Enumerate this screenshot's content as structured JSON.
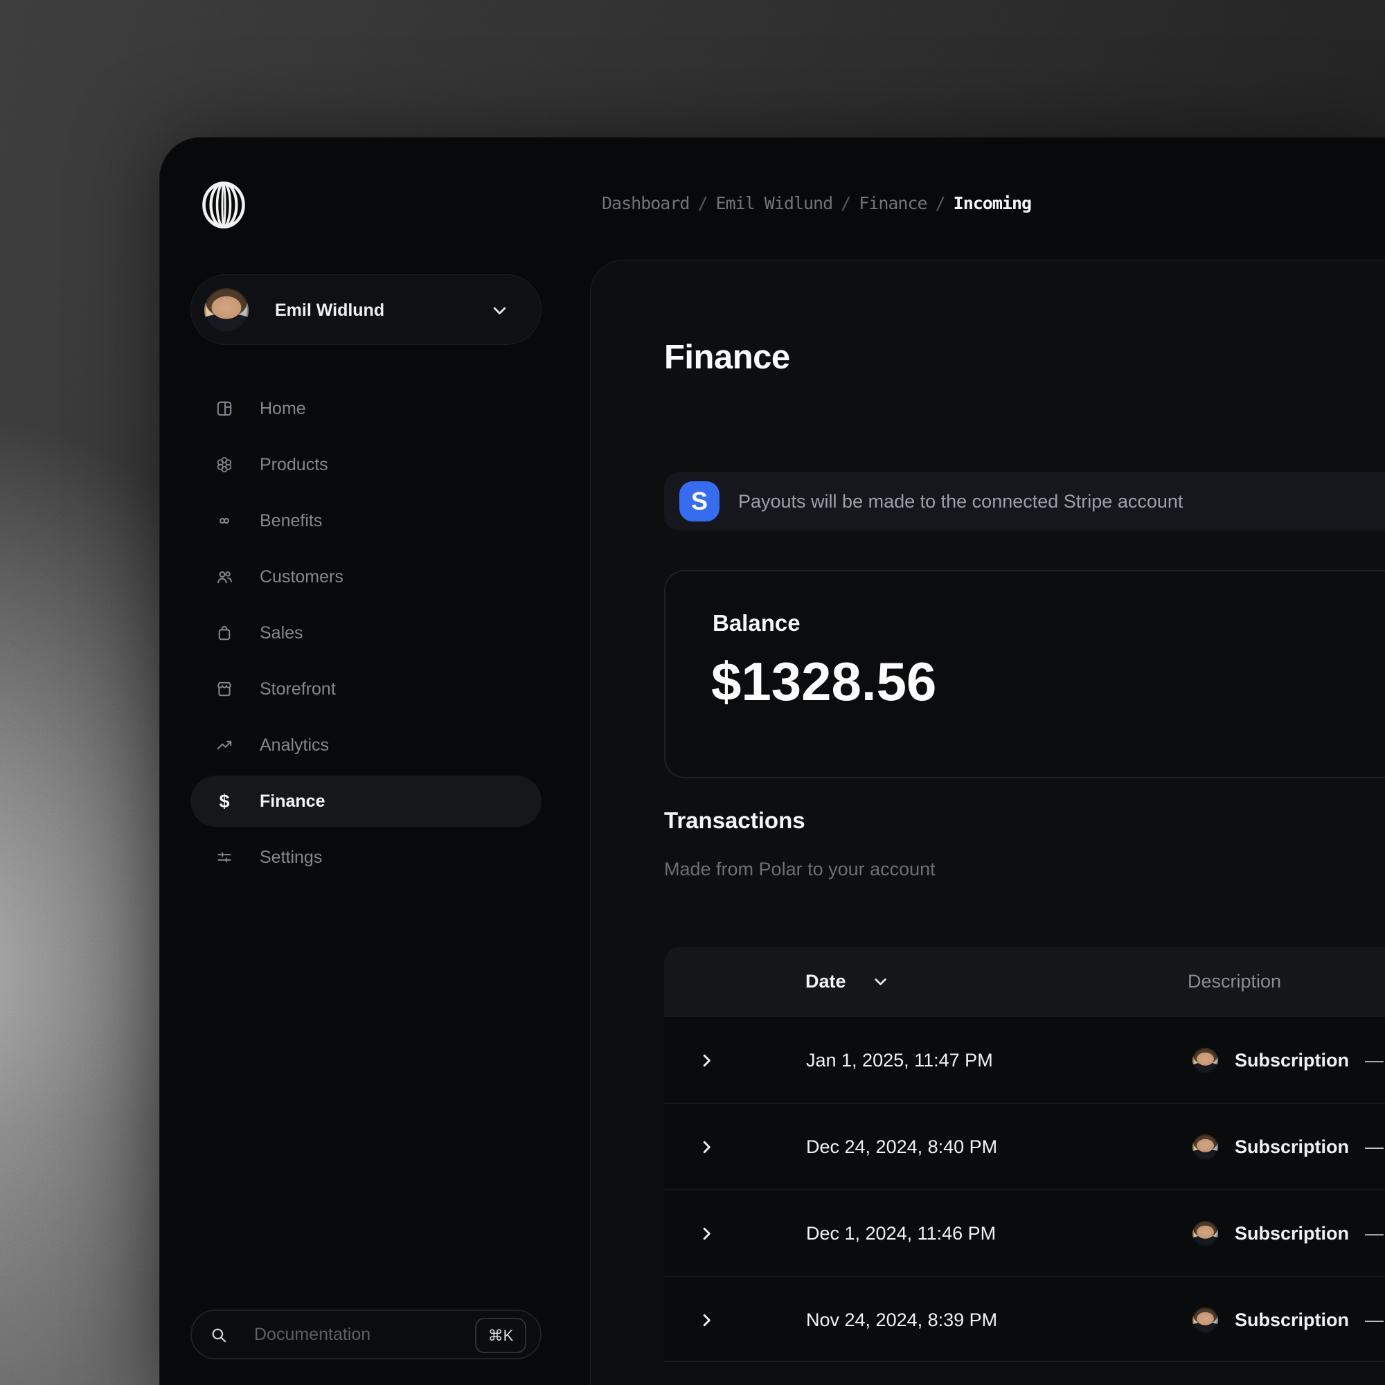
{
  "colors": {
    "stripe_blue": "#356cf0",
    "window_bg": "#08090a",
    "panel_bg": "#0d0e10"
  },
  "breadcrumb": {
    "items": [
      "Dashboard",
      "Emil Widlund",
      "Finance"
    ],
    "current": "Incoming",
    "separator": "/"
  },
  "sidebar": {
    "user": {
      "name": "Emil Widlund"
    },
    "nav": [
      {
        "id": "home",
        "icon": "home-icon",
        "label": "Home",
        "active": false
      },
      {
        "id": "products",
        "icon": "products-icon",
        "label": "Products",
        "active": false
      },
      {
        "id": "benefits",
        "icon": "benefits-icon",
        "label": "Benefits",
        "active": false
      },
      {
        "id": "customers",
        "icon": "customers-icon",
        "label": "Customers",
        "active": false
      },
      {
        "id": "sales",
        "icon": "sales-icon",
        "label": "Sales",
        "active": false
      },
      {
        "id": "storefront",
        "icon": "storefront-icon",
        "label": "Storefront",
        "active": false
      },
      {
        "id": "analytics",
        "icon": "analytics-icon",
        "label": "Analytics",
        "active": false
      },
      {
        "id": "finance",
        "icon": "dollar-icon",
        "label": "Finance",
        "active": true
      },
      {
        "id": "settings",
        "icon": "settings-icon",
        "label": "Settings",
        "active": false
      }
    ],
    "search": {
      "placeholder": "Documentation",
      "shortcut": "⌘K"
    }
  },
  "main": {
    "title": "Finance",
    "stripe_banner": {
      "badge": "S",
      "text": "Payouts will be made to the connected Stripe account"
    },
    "balance": {
      "label": "Balance",
      "amount": "$1328.56"
    },
    "transactions": {
      "heading": "Transactions",
      "subheading": "Made from Polar to your account",
      "table": {
        "columns": {
          "date": "Date",
          "description": "Description"
        },
        "rows": [
          {
            "date": "Jan 1, 2025, 11:47 PM",
            "description": "Subscription",
            "suffix": "—"
          },
          {
            "date": "Dec 24, 2024, 8:40 PM",
            "description": "Subscription",
            "suffix": "—"
          },
          {
            "date": "Dec 1, 2024, 11:46 PM",
            "description": "Subscription",
            "suffix": "—"
          },
          {
            "date": "Nov 24, 2024, 8:39 PM",
            "description": "Subscription",
            "suffix": "—"
          }
        ]
      }
    }
  }
}
